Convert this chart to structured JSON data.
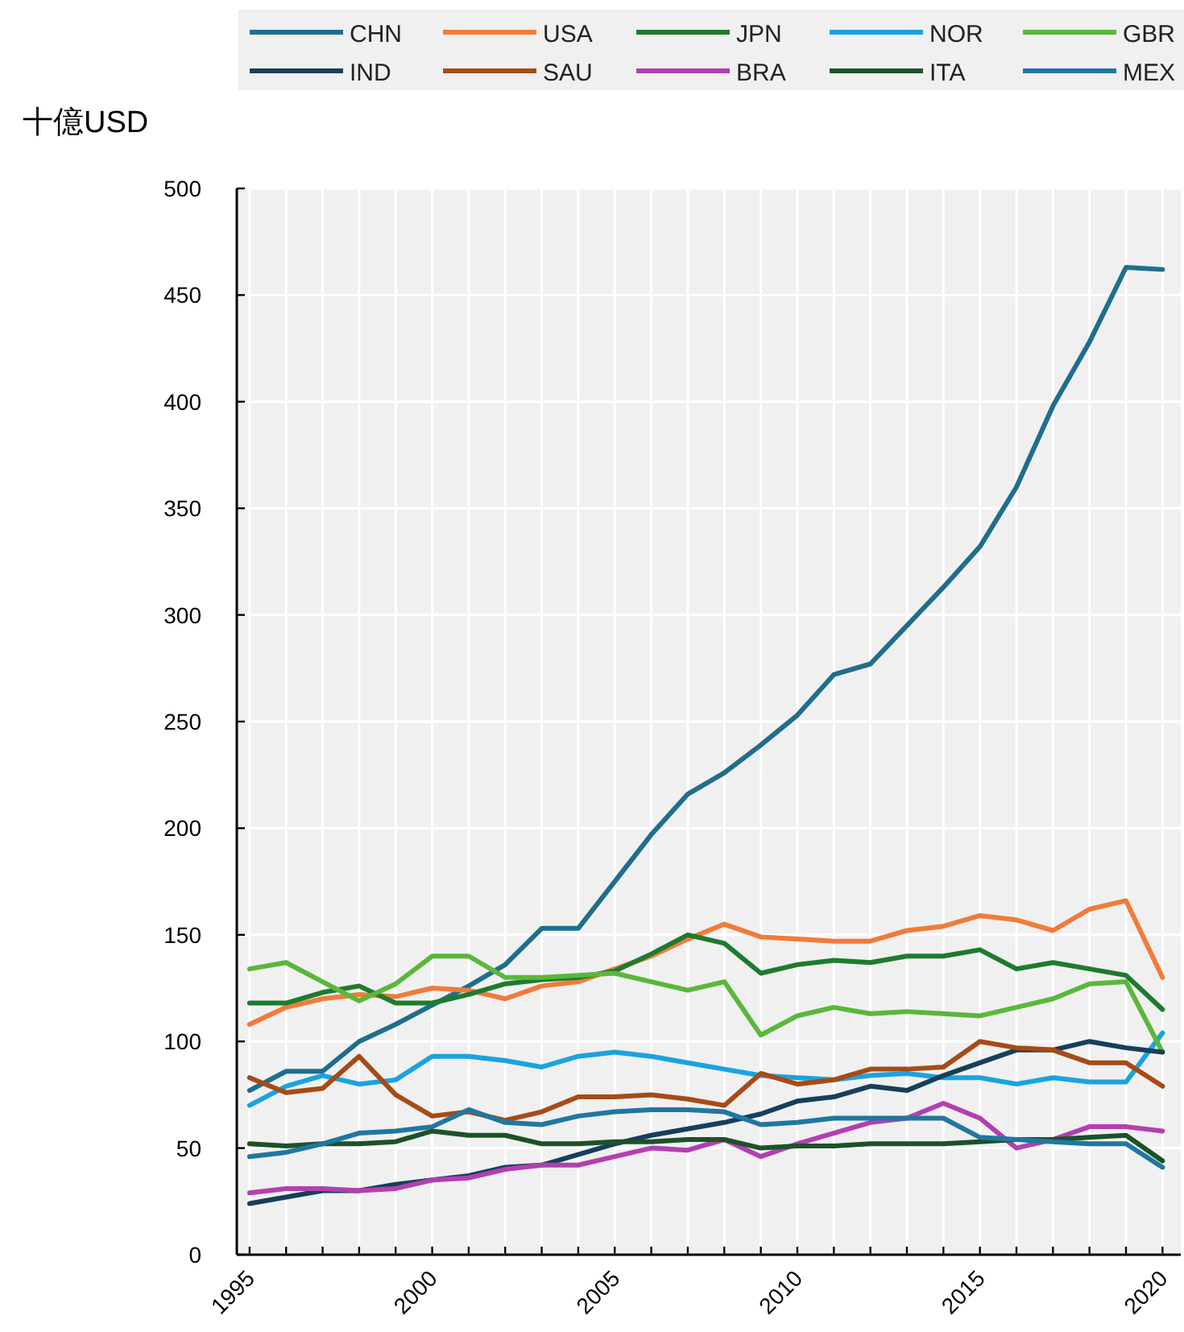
{
  "chart_data": {
    "type": "line",
    "ylabel": "十億USD",
    "x": [
      1995,
      1996,
      1997,
      1998,
      1999,
      2000,
      2001,
      2002,
      2003,
      2004,
      2005,
      2006,
      2007,
      2008,
      2009,
      2010,
      2011,
      2012,
      2013,
      2014,
      2015,
      2016,
      2017,
      2018,
      2019,
      2020
    ],
    "xlim": [
      1994.65,
      2020.5
    ],
    "ylim": [
      0,
      500
    ],
    "xticks": [
      1995,
      {
        "value": 1996,
        "label": null
      },
      {
        "value": 1997,
        "label": null
      },
      {
        "value": 1998,
        "label": null
      },
      {
        "value": 1999,
        "label": null
      },
      2000,
      {
        "value": 2001,
        "label": null
      },
      {
        "value": 2002,
        "label": null
      },
      {
        "value": 2003,
        "label": null
      },
      {
        "value": 2004,
        "label": null
      },
      2005,
      {
        "value": 2006,
        "label": null
      },
      {
        "value": 2007,
        "label": null
      },
      {
        "value": 2008,
        "label": null
      },
      {
        "value": 2009,
        "label": null
      },
      2010,
      {
        "value": 2011,
        "label": null
      },
      {
        "value": 2012,
        "label": null
      },
      {
        "value": 2013,
        "label": null
      },
      {
        "value": 2014,
        "label": null
      },
      2015,
      {
        "value": 2016,
        "label": null
      },
      {
        "value": 2017,
        "label": null
      },
      {
        "value": 2018,
        "label": null
      },
      {
        "value": 2019,
        "label": null
      },
      2020
    ],
    "yticks": [
      0,
      50,
      100,
      150,
      200,
      250,
      300,
      350,
      400,
      450,
      500
    ],
    "grid": true,
    "legend": "top",
    "marker": "none",
    "line_style": "solid",
    "series": [
      {
        "name": "CHN",
        "color": "#1f6e8c",
        "values": [
          77,
          86,
          86,
          100,
          108,
          117,
          126,
          136,
          153,
          153,
          175,
          197,
          216,
          226,
          239,
          253,
          272,
          277,
          295,
          313,
          332,
          360,
          398,
          428,
          463,
          462
        ]
      },
      {
        "name": "USA",
        "color": "#f07c3a",
        "values": [
          108,
          116,
          120,
          122,
          121,
          125,
          124,
          120,
          126,
          128,
          134,
          140,
          148,
          155,
          149,
          148,
          147,
          147,
          152,
          154,
          159,
          157,
          152,
          162,
          166,
          130
        ]
      },
      {
        "name": "JPN",
        "color": "#1e7b2e",
        "values": [
          118,
          118,
          123,
          126,
          118,
          118,
          122,
          127,
          129,
          130,
          133,
          141,
          150,
          146,
          132,
          136,
          138,
          137,
          140,
          140,
          143,
          134,
          137,
          134,
          131,
          115
        ]
      },
      {
        "name": "NOR",
        "color": "#1aa3e0",
        "values": [
          70,
          79,
          84,
          80,
          82,
          93,
          93,
          91,
          88,
          93,
          95,
          93,
          90,
          87,
          84,
          83,
          82,
          84,
          85,
          83,
          83,
          80,
          83,
          81,
          81,
          104
        ]
      },
      {
        "name": "GBR",
        "color": "#5bb73b",
        "values": [
          134,
          137,
          128,
          119,
          127,
          140,
          140,
          130,
          130,
          131,
          132,
          128,
          124,
          128,
          103,
          112,
          116,
          113,
          114,
          113,
          112,
          116,
          120,
          127,
          128,
          95
        ]
      },
      {
        "name": "IND",
        "color": "#163f5a",
        "values": [
          24,
          27,
          30,
          30,
          33,
          35,
          37,
          41,
          42,
          47,
          52,
          56,
          59,
          62,
          66,
          72,
          74,
          79,
          77,
          84,
          90,
          96,
          96,
          100,
          97,
          95
        ]
      },
      {
        "name": "SAU",
        "color": "#a64b16",
        "values": [
          83,
          76,
          78,
          93,
          75,
          65,
          67,
          63,
          67,
          74,
          74,
          75,
          73,
          70,
          85,
          80,
          82,
          87,
          87,
          88,
          100,
          97,
          96,
          90,
          90,
          79
        ]
      },
      {
        "name": "BRA",
        "color": "#b33fb0",
        "values": [
          29,
          31,
          31,
          30,
          31,
          35,
          36,
          40,
          42,
          42,
          46,
          50,
          49,
          54,
          46,
          52,
          57,
          62,
          64,
          71,
          64,
          50,
          54,
          60,
          60,
          58
        ]
      },
      {
        "name": "ITA",
        "color": "#1c5228",
        "values": [
          52,
          51,
          52,
          52,
          53,
          58,
          56,
          56,
          52,
          52,
          53,
          53,
          54,
          54,
          50,
          51,
          51,
          52,
          52,
          52,
          53,
          54,
          54,
          55,
          56,
          44
        ]
      },
      {
        "name": "MEX",
        "color": "#2077a0",
        "values": [
          46,
          48,
          52,
          57,
          58,
          60,
          68,
          62,
          61,
          65,
          67,
          68,
          68,
          67,
          61,
          62,
          64,
          64,
          64,
          64,
          55,
          54,
          53,
          52,
          52,
          41
        ]
      }
    ]
  }
}
